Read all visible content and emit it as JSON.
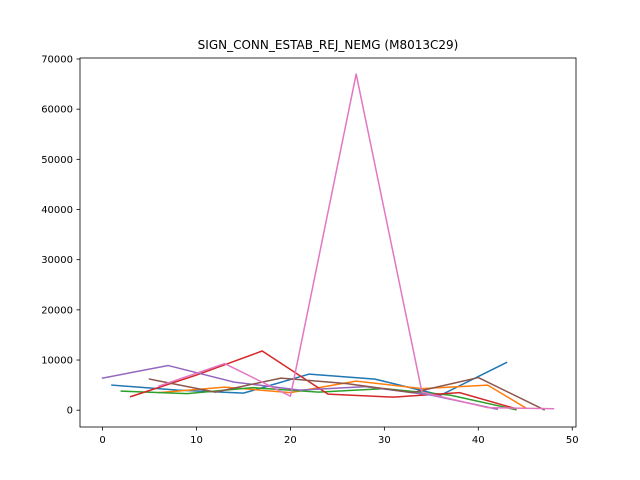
{
  "chart_data": {
    "type": "line",
    "title": "SIGN_CONN_ESTAB_REJ_NEMG (M8013C29)",
    "xlabel": "",
    "ylabel": "",
    "xlim": [
      -2.4,
      50.4
    ],
    "ylim": [
      -3350,
      70200
    ],
    "xticks": [
      0,
      10,
      20,
      30,
      40,
      50
    ],
    "yticks": [
      0,
      10000,
      20000,
      30000,
      40000,
      50000,
      60000,
      70000
    ],
    "xtick_labels": [
      "0",
      "10",
      "20",
      "30",
      "40",
      "50"
    ],
    "ytick_labels": [
      "0",
      "10000",
      "20000",
      "30000",
      "40000",
      "50000",
      "60000",
      "70000"
    ],
    "grid": false,
    "legend": "none",
    "series": [
      {
        "color": "#1f77b4",
        "points": [
          [
            1,
            5000
          ],
          [
            8,
            4000
          ],
          [
            15,
            3400
          ],
          [
            22,
            7200
          ],
          [
            29,
            6200
          ],
          [
            36,
            3000
          ],
          [
            43,
            9500
          ]
        ]
      },
      {
        "color": "#ff7f0e",
        "points": [
          [
            6,
            3500
          ],
          [
            13,
            4600
          ],
          [
            20,
            3500
          ],
          [
            27,
            5800
          ],
          [
            34,
            4300
          ],
          [
            41,
            5000
          ],
          [
            45,
            500
          ]
        ]
      },
      {
        "color": "#2ca02c",
        "points": [
          [
            2,
            3800
          ],
          [
            9,
            3300
          ],
          [
            16,
            4500
          ],
          [
            23,
            3600
          ],
          [
            30,
            4300
          ],
          [
            37,
            3000
          ],
          [
            44,
            100
          ]
        ]
      },
      {
        "color": "#d62728",
        "points": [
          [
            3,
            2700
          ],
          [
            10,
            7000
          ],
          [
            17,
            11800
          ],
          [
            24,
            3200
          ],
          [
            31,
            2600
          ],
          [
            38,
            3500
          ],
          [
            44,
            300
          ]
        ]
      },
      {
        "color": "#9467bd",
        "points": [
          [
            0,
            6400
          ],
          [
            7,
            8900
          ],
          [
            14,
            5600
          ],
          [
            21,
            4000
          ],
          [
            28,
            4700
          ],
          [
            35,
            3000
          ],
          [
            42,
            200
          ]
        ]
      },
      {
        "color": "#8c564b",
        "points": [
          [
            5,
            6200
          ],
          [
            12,
            3600
          ],
          [
            19,
            6400
          ],
          [
            26,
            5300
          ],
          [
            33,
            3500
          ],
          [
            40,
            6500
          ],
          [
            47,
            100
          ]
        ]
      },
      {
        "color": "#e377c2",
        "points": [
          [
            6,
            4800
          ],
          [
            13,
            9300
          ],
          [
            20,
            2800
          ],
          [
            27,
            67000
          ],
          [
            34,
            3600
          ],
          [
            41,
            500
          ],
          [
            48,
            300
          ]
        ]
      }
    ]
  }
}
